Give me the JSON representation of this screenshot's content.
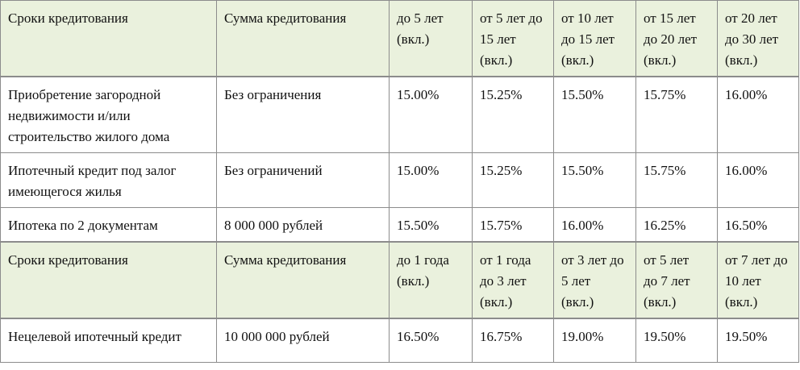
{
  "colors": {
    "header_bg": "#eaf1dd",
    "border": "#8c8c8c",
    "text": "#111111"
  },
  "table": {
    "header1": {
      "term_label": "Сроки кредитования",
      "amount_label": "Сумма кредитования",
      "periods": [
        "до 5 лет\n(вкл.)",
        "от 5 лет до\n15 лет\n(вкл.)",
        "от 10 лет\nдо 15 лет\n(вкл.)",
        "от 15 лет\nдо 20 лет\n(вкл.)",
        "от 20 лет\nдо 30 лет\n(вкл.)"
      ]
    },
    "section1_rows": [
      {
        "program": "Приобретение загородной\nнедвижимости и/или\nстроительство жилого дома",
        "amount": "Без ограничения",
        "rates": [
          "15.00%",
          "15.25%",
          "15.50%",
          "15.75%",
          "16.00%"
        ]
      },
      {
        "program": "Ипотечный кредит под залог\nимеющегося жилья",
        "amount": "Без ограничений",
        "rates": [
          "15.00%",
          "15.25%",
          "15.50%",
          "15.75%",
          "16.00%"
        ]
      },
      {
        "program": "Ипотека по 2 документам",
        "amount": "8 000 000 рублей",
        "rates": [
          "15.50%",
          "15.75%",
          "16.00%",
          "16.25%",
          "16.50%"
        ]
      }
    ],
    "header2": {
      "term_label": "Сроки кредитования",
      "amount_label": "Сумма кредитования",
      "periods": [
        "до 1 года\n(вкл.)",
        "от 1 года\nдо 3 лет\n(вкл.)",
        "от 3 лет до\n5 лет\n(вкл.)",
        "от 5 лет\nдо 7 лет\n(вкл.)",
        "от 7 лет до\n10 лет\n(вкл.)"
      ]
    },
    "section2_rows": [
      {
        "program": "Нецелевой ипотечный кредит",
        "amount": "10 000 000 рублей",
        "rates": [
          "16.50%",
          "16.75%",
          "19.00%",
          "19.50%",
          "19.50%"
        ]
      }
    ]
  }
}
